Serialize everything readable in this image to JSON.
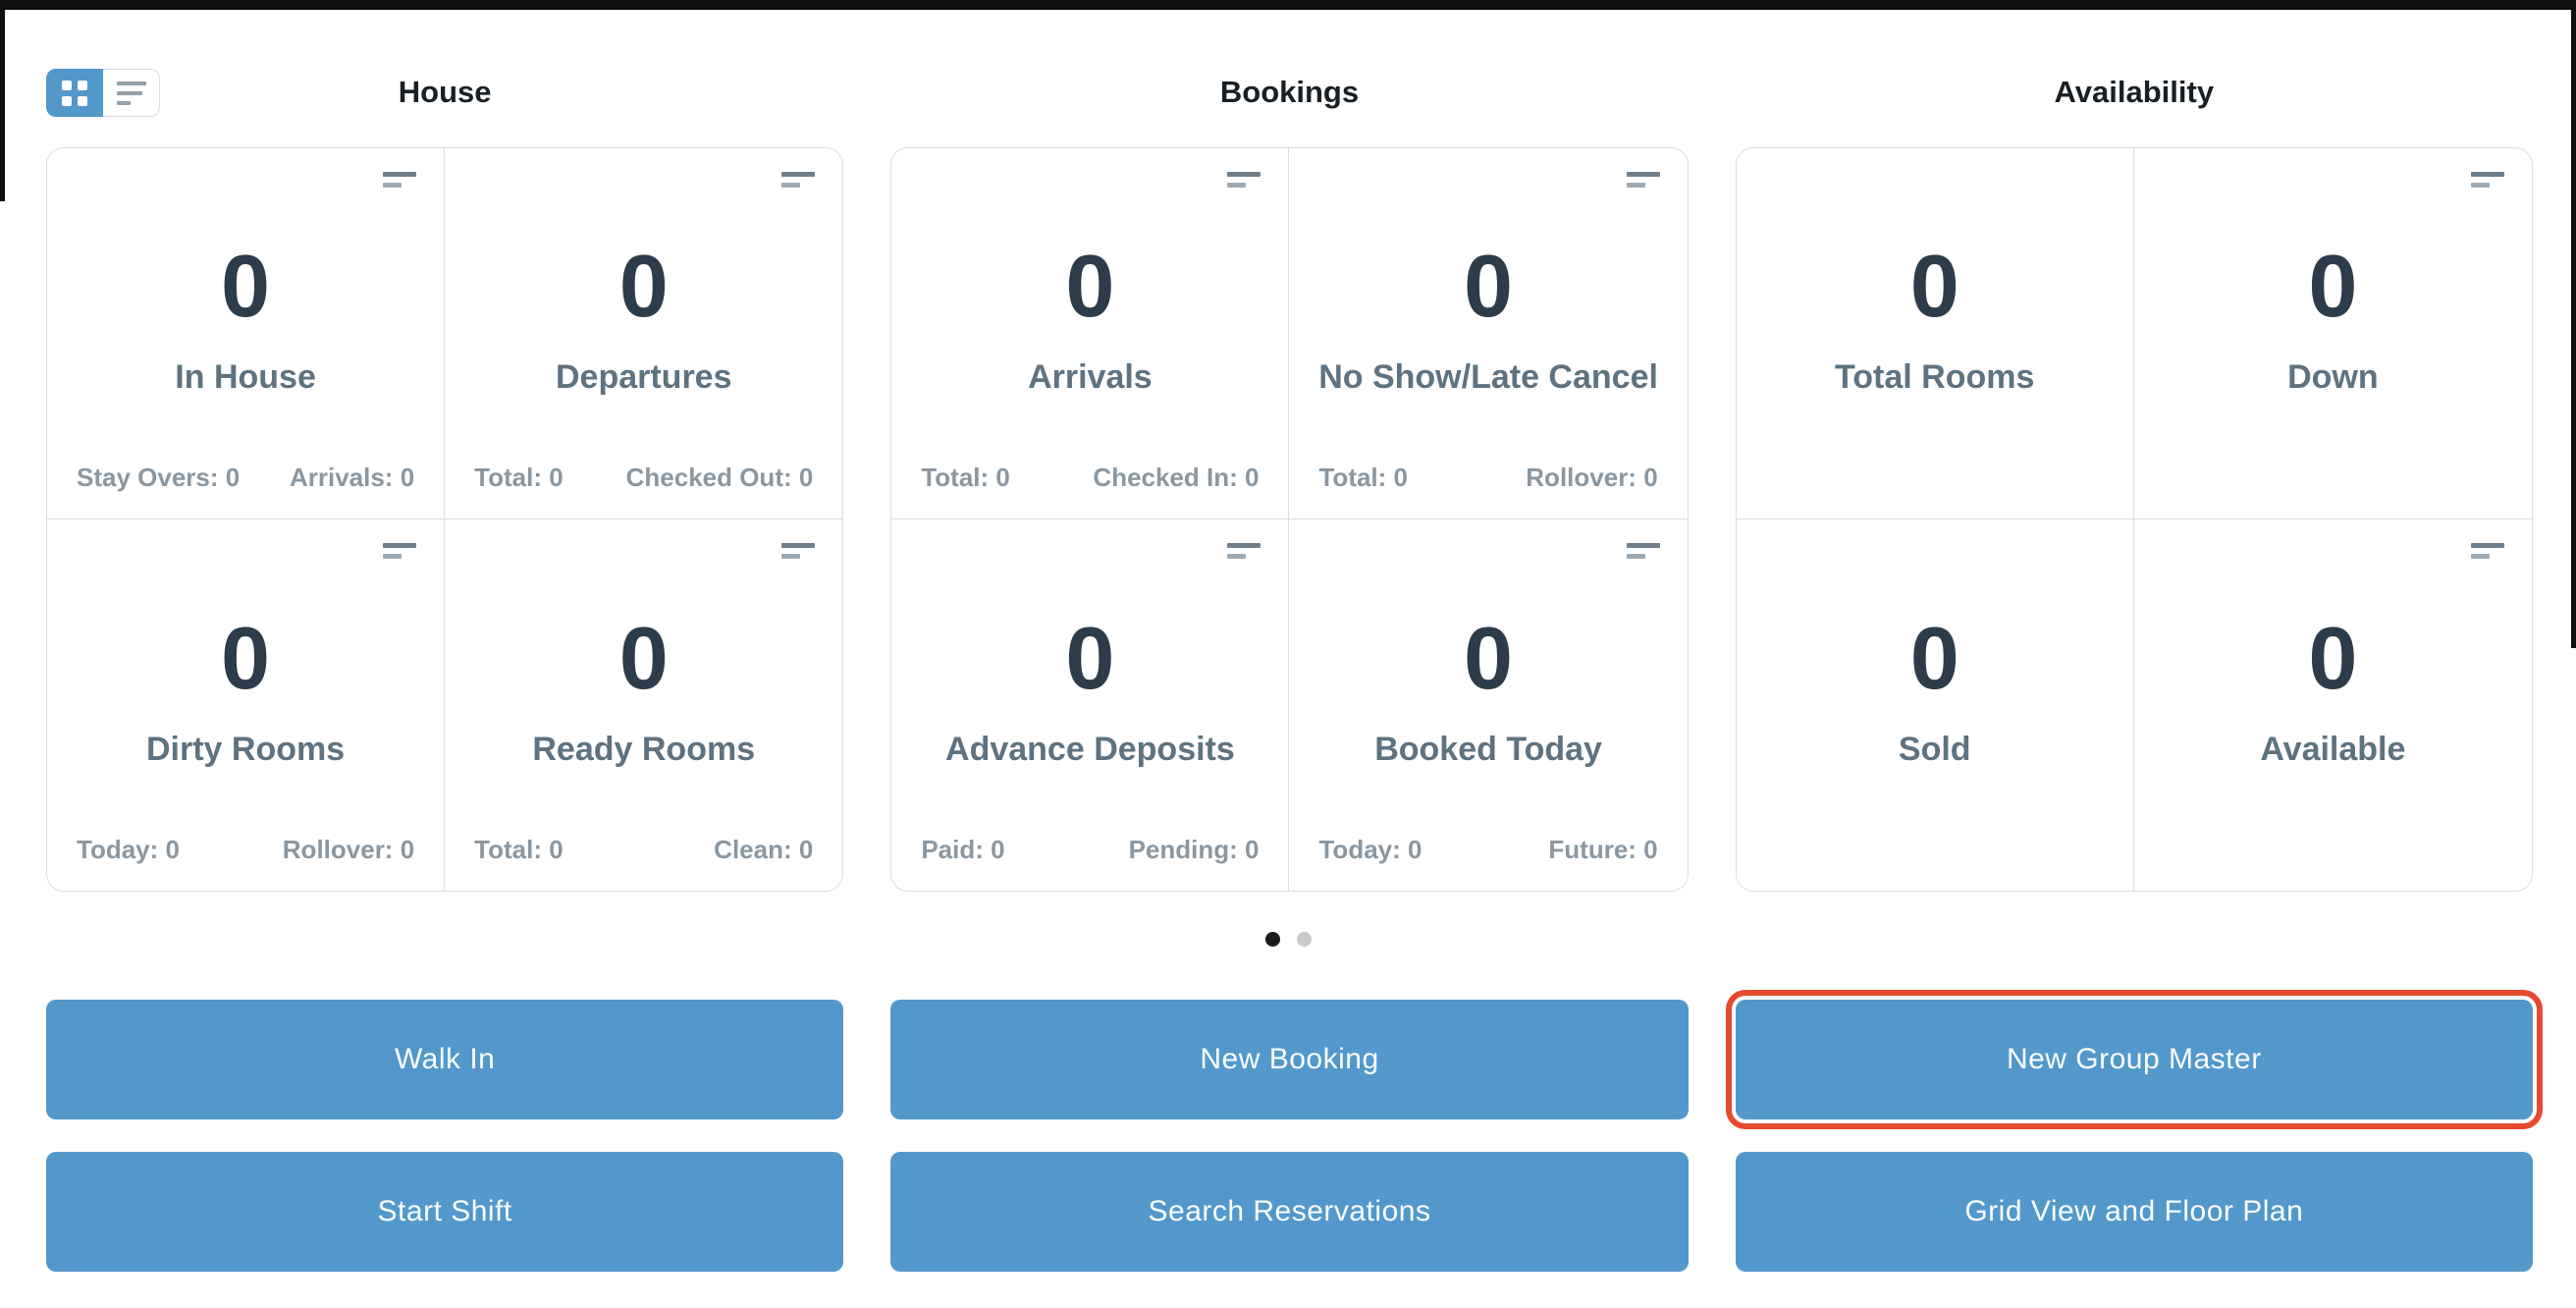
{
  "view_toggle": {
    "options": [
      {
        "name": "grid",
        "icon": "grid-icon",
        "active": true
      },
      {
        "name": "list",
        "icon": "list-lines-icon",
        "active": false
      }
    ]
  },
  "columns": [
    {
      "title": "House",
      "cards": [
        {
          "value": "0",
          "label": "In House",
          "footer_left": "Stay Overs: 0",
          "footer_right": "Arrivals: 0",
          "has_icon": true
        },
        {
          "value": "0",
          "label": "Departures",
          "footer_left": "Total: 0",
          "footer_right": "Checked Out: 0",
          "has_icon": true
        },
        {
          "value": "0",
          "label": "Dirty Rooms",
          "footer_left": "Today: 0",
          "footer_right": "Rollover: 0",
          "has_icon": true
        },
        {
          "value": "0",
          "label": "Ready Rooms",
          "footer_left": "Total: 0",
          "footer_right": "Clean: 0",
          "has_icon": true
        }
      ]
    },
    {
      "title": "Bookings",
      "cards": [
        {
          "value": "0",
          "label": "Arrivals",
          "footer_left": "Total: 0",
          "footer_right": "Checked In: 0",
          "has_icon": true
        },
        {
          "value": "0",
          "label": "No Show/Late Cancel",
          "footer_left": "Total: 0",
          "footer_right": "Rollover: 0",
          "has_icon": true
        },
        {
          "value": "0",
          "label": "Advance Deposits",
          "footer_left": "Paid: 0",
          "footer_right": "Pending: 0",
          "has_icon": true
        },
        {
          "value": "0",
          "label": "Booked Today",
          "footer_left": "Today: 0",
          "footer_right": "Future: 0",
          "has_icon": true
        }
      ]
    },
    {
      "title": "Availability",
      "cards": [
        {
          "value": "0",
          "label": "Total Rooms",
          "has_icon": false
        },
        {
          "value": "0",
          "label": "Down",
          "has_icon": true
        },
        {
          "value": "0",
          "label": "Sold",
          "has_icon": false
        },
        {
          "value": "0",
          "label": "Available",
          "has_icon": true
        }
      ]
    }
  ],
  "carousel": {
    "dot_count": 2,
    "active_index": 0
  },
  "actions": [
    {
      "label": "Walk In",
      "highlighted": false
    },
    {
      "label": "New Booking",
      "highlighted": false
    },
    {
      "label": "New Group Master",
      "highlighted": true
    },
    {
      "label": "Start Shift",
      "highlighted": false
    },
    {
      "label": "Search Reservations",
      "highlighted": false
    },
    {
      "label": "Grid View and Floor Plan",
      "highlighted": false
    }
  ],
  "colors": {
    "accent_blue": "#5398cb",
    "value_text": "#2d3c4b",
    "label_text": "#5e7280",
    "footer_text": "#8a97a1",
    "card_border": "#d8dde2",
    "highlight_red": "#e64a2e",
    "dot_active": "#1a1a1a",
    "dot_inactive": "#c9c9c9"
  }
}
